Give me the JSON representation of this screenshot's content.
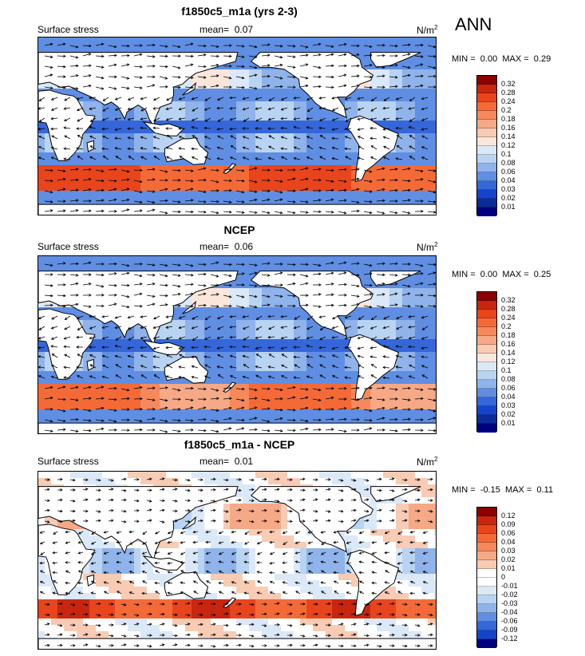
{
  "season": "ANN",
  "panels": [
    {
      "title": "f1850c5_m1a (yrs 2-3)",
      "variable": "Surface stress",
      "mean_label": "mean=",
      "mean_value": "0.07",
      "units": "N/m",
      "units_exp": "2",
      "min_label": "MIN =",
      "min_value": "0.00",
      "max_label": "MAX =",
      "max_value": "0.29",
      "levels": [
        "0.32",
        "0.28",
        "0.24",
        "0.2",
        "0.18",
        "0.16",
        "0.14",
        "0.12",
        "0.1",
        "0.08",
        "0.06",
        "0.04",
        "0.03",
        "0.02",
        "0.01"
      ]
    },
    {
      "title": "NCEP",
      "variable": "Surface stress",
      "mean_label": "mean=",
      "mean_value": "0.06",
      "units": "N/m",
      "units_exp": "2",
      "min_label": "MIN =",
      "min_value": "0.00",
      "max_label": "MAX =",
      "max_value": "0.25",
      "levels": [
        "0.32",
        "0.28",
        "0.24",
        "0.2",
        "0.18",
        "0.16",
        "0.14",
        "0.12",
        "0.1",
        "0.08",
        "0.06",
        "0.04",
        "0.03",
        "0.02",
        "0.01"
      ]
    },
    {
      "title": "f1850c5_m1a - NCEP",
      "variable": "Surface stress",
      "mean_label": "mean=",
      "mean_value": "0.01",
      "units": "N/m",
      "units_exp": "2",
      "min_label": "MIN =",
      "min_value": "-0.15",
      "max_label": "MAX =",
      "max_value": "0.11",
      "levels": [
        "0.12",
        "0.09",
        "0.06",
        "0.04",
        "0.03",
        "0.02",
        "0.01",
        "0",
        "-0.01",
        "-0.02",
        "-0.03",
        "-0.04",
        "-0.06",
        "-0.09",
        "-0.12"
      ]
    }
  ],
  "colors": {
    "magnitude": [
      "#8b0000",
      "#c8260f",
      "#e8451d",
      "#f46a36",
      "#f5895c",
      "#f6a987",
      "#f8cbb4",
      "#fbe6dc",
      "#dbe8f8",
      "#b9d3f2",
      "#8fb3ea",
      "#5f8ee3",
      "#3567d9",
      "#1444cc",
      "#0b2b96",
      "#00007f"
    ],
    "difference": [
      "#8b0000",
      "#c8260f",
      "#e8451d",
      "#f46a36",
      "#f5895c",
      "#f6a987",
      "#f8cbb4",
      "#ffffff",
      "#ffffff",
      "#dbe8f8",
      "#b9d3f2",
      "#8fb3ea",
      "#5f8ee3",
      "#3567d9",
      "#1444cc",
      "#00007f"
    ]
  }
}
